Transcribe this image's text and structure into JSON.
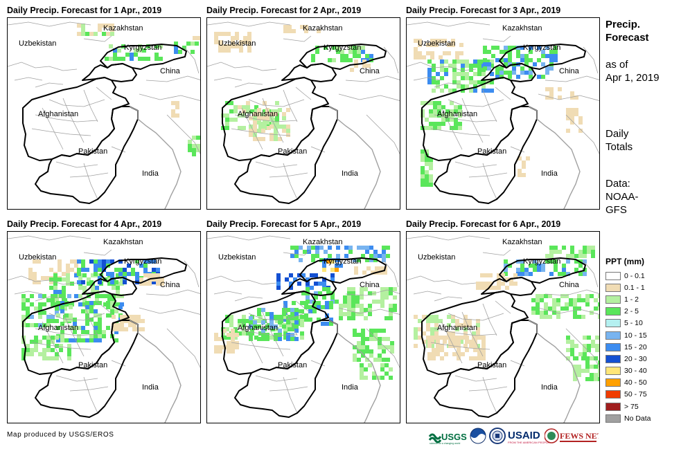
{
  "panels": [
    {
      "title": "Daily Precip. Forecast for 1 Apr., 2019",
      "date": "1 Apr., 2019"
    },
    {
      "title": "Daily Precip. Forecast for 2 Apr., 2019",
      "date": "2 Apr., 2019"
    },
    {
      "title": "Daily Precip. Forecast for 3 Apr., 2019",
      "date": "3 Apr., 2019"
    },
    {
      "title": "Daily Precip. Forecast for 4 Apr., 2019",
      "date": "4 Apr., 2019"
    },
    {
      "title": "Daily Precip. Forecast for 5 Apr., 2019",
      "date": "5 Apr., 2019"
    },
    {
      "title": "Daily Precip. Forecast for 6 Apr., 2019",
      "date": "6 Apr., 2019"
    }
  ],
  "map_labels": {
    "kazakhstan": "Kazakhstan",
    "uzbekistan": "Uzbekistan",
    "kyrgyzstan": "Kyrgyzstan",
    "china": "China",
    "afghanistan": "Afghanistan",
    "pakistan": "Pakistan",
    "india": "India"
  },
  "side": {
    "heading_line1": "Precip.",
    "heading_line2": "Forecast",
    "asof_line1": "as of",
    "asof_line2": "Apr 1, 2019",
    "totals_line1": "Daily",
    "totals_line2": "Totals",
    "data_line1": "Data:",
    "data_line2": "NOAA-",
    "data_line3": "GFS"
  },
  "legend": {
    "title": "PPT (mm)",
    "items": [
      {
        "label": "0 - 0.1",
        "color": "#ffffff"
      },
      {
        "label": "0.1 - 1",
        "color": "#f0dcb4"
      },
      {
        "label": "1 - 2",
        "color": "#b4f0a0"
      },
      {
        "label": "2 - 5",
        "color": "#5ae65a"
      },
      {
        "label": "5 - 10",
        "color": "#b4f0f0"
      },
      {
        "label": "10 - 15",
        "color": "#78b4f0"
      },
      {
        "label": "15 - 20",
        "color": "#3c8cf0"
      },
      {
        "label": "20 - 30",
        "color": "#1450d2"
      },
      {
        "label": "30 - 40",
        "color": "#ffe678"
      },
      {
        "label": "40 - 50",
        "color": "#ffa000"
      },
      {
        "label": "50 - 75",
        "color": "#f03c00"
      },
      {
        "label": "> 75",
        "color": "#a01e1e"
      },
      {
        "label": "No Data",
        "color": "#a0a0a0"
      }
    ]
  },
  "credit": "Map produced by USGS/EROS",
  "logos": {
    "usgs": "USGS",
    "usgs_tagline": "science for a changing world",
    "usaid": "USAID",
    "usaid_tagline": "FROM THE AMERICAN PEOPLE",
    "fewsnet": "FEWS NET"
  },
  "colors": {
    "border_heavy": "#000000",
    "border_light": "#a0a0a0",
    "usgs_green": "#006f41",
    "usaid_blue": "#002a6c",
    "usaid_red": "#c2113a"
  }
}
